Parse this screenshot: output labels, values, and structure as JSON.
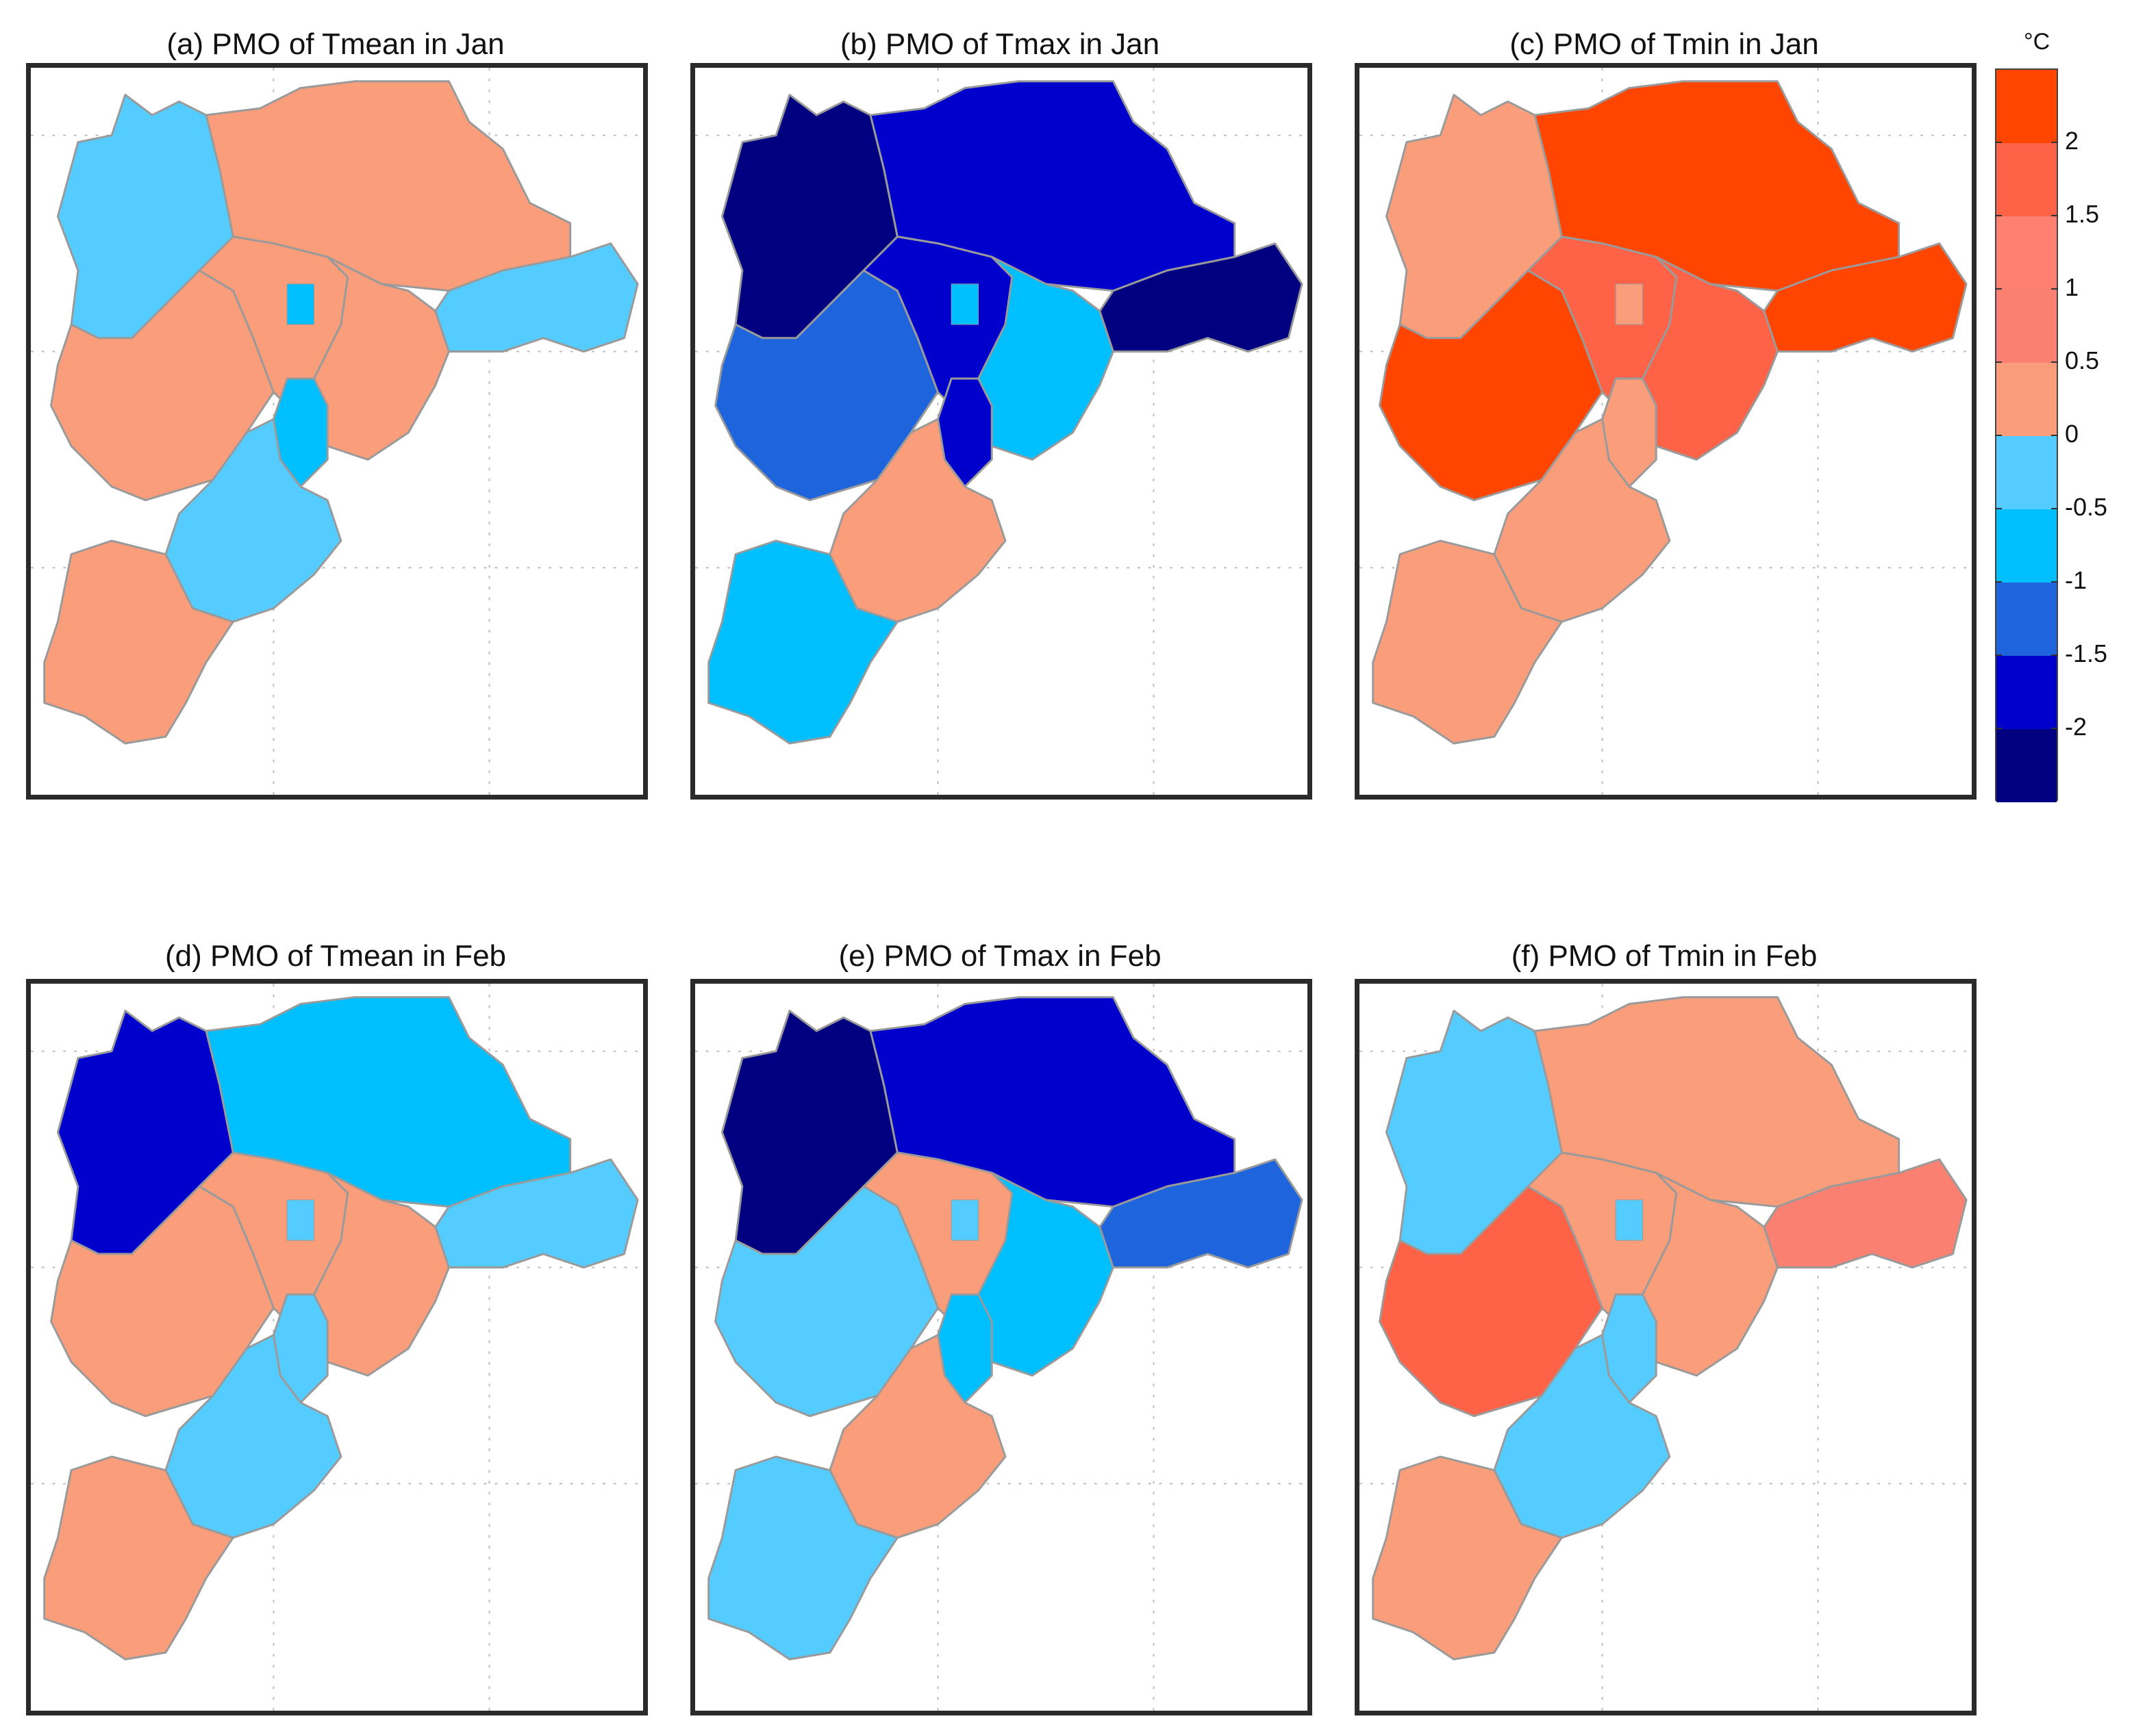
{
  "panels": [
    {
      "title": "(a) PMO of Tmean in Jan",
      "regions": {
        "nw": "#55ccff",
        "ne": "#f99d7a",
        "w": "#f99d7a",
        "c": "#f99d7a",
        "e": "#f99d7a",
        "ee": "#55ccff",
        "c2": "#00bfff",
        "s": "#55ccff",
        "sw": "#f99d7a",
        "cap": "#00bfff"
      }
    },
    {
      "title": "(b) PMO of Tmax in Jan",
      "regions": {
        "nw": "#000080",
        "ne": "#0000cd",
        "w": "#1e64dc",
        "c": "#0000cd",
        "e": "#00bfff",
        "ee": "#000080",
        "c2": "#0000cd",
        "s": "#f99d7a",
        "sw": "#00bfff",
        "cap": "#00bfff"
      }
    },
    {
      "title": "(c) PMO of Tmin in Jan",
      "regions": {
        "nw": "#f99d7a",
        "ne": "#ff4500",
        "w": "#ff4500",
        "c": "#ff6347",
        "e": "#ff6347",
        "ee": "#ff4500",
        "c2": "#f99d7a",
        "s": "#f99d7a",
        "sw": "#f99d7a",
        "cap": "#f99d7a"
      }
    },
    {
      "title": "(d) PMO of Tmean in Feb",
      "regions": {
        "nw": "#0000cd",
        "ne": "#00bfff",
        "w": "#f99d7a",
        "c": "#f99d7a",
        "e": "#f99d7a",
        "ee": "#55ccff",
        "c2": "#55ccff",
        "s": "#55ccff",
        "sw": "#f99d7a",
        "cap": "#55ccff"
      }
    },
    {
      "title": "(e) PMO of Tmax in Feb",
      "regions": {
        "nw": "#000080",
        "ne": "#0000cd",
        "w": "#55ccff",
        "c": "#f99d7a",
        "e": "#00bfff",
        "ee": "#1e64dc",
        "c2": "#00bfff",
        "s": "#f99d7a",
        "sw": "#55ccff",
        "cap": "#55ccff"
      }
    },
    {
      "title": "(f) PMO of Tmin in Feb",
      "regions": {
        "nw": "#55ccff",
        "ne": "#f99d7a",
        "w": "#ff6347",
        "c": "#f99d7a",
        "e": "#f99d7a",
        "ee": "#fa8072",
        "c2": "#55ccff",
        "s": "#55ccff",
        "sw": "#f99d7a",
        "cap": "#55ccff"
      }
    }
  ],
  "colorbar": {
    "unit": "°C",
    "bins": [
      {
        "color": "#000080"
      },
      {
        "color": "#0000cd"
      },
      {
        "color": "#1e64dc"
      },
      {
        "color": "#00bfff"
      },
      {
        "color": "#55ccff"
      },
      {
        "color": "#f99d7a"
      },
      {
        "color": "#fa8072"
      },
      {
        "color": "#ff8070"
      },
      {
        "color": "#ff6347"
      },
      {
        "color": "#ff4500"
      }
    ],
    "ticks": [
      "2",
      "1.5",
      "1",
      "0.5",
      "0",
      "-0.5",
      "-1",
      "-1.5",
      "-2"
    ]
  }
}
